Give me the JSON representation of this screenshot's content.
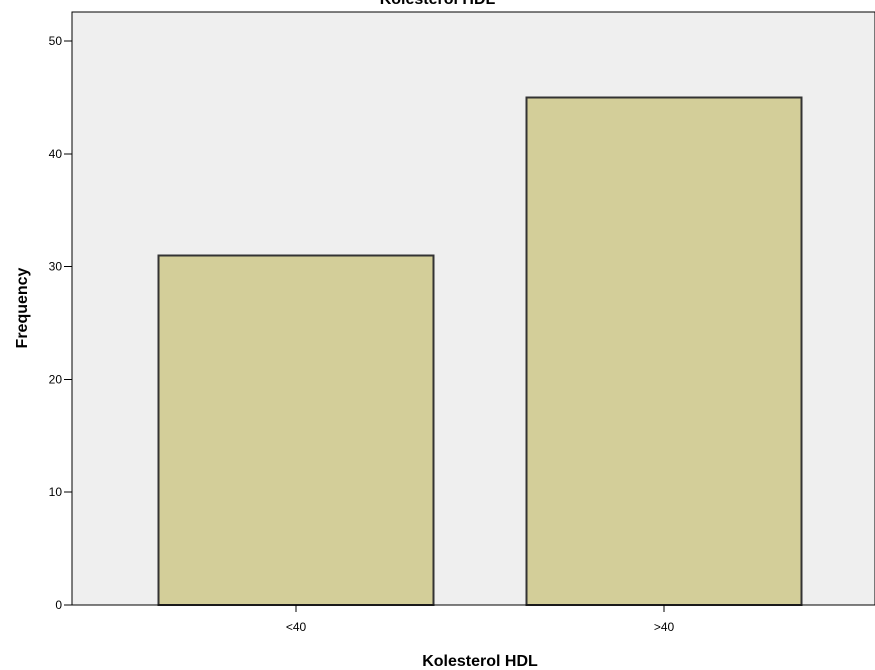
{
  "chart_data": {
    "type": "bar",
    "title": "Kolesterol HDL",
    "xlabel": "Kolesterol HDL",
    "ylabel": "Frequency",
    "categories": [
      "<40",
      ">40"
    ],
    "values": [
      31,
      45
    ],
    "ylim": [
      0,
      52
    ],
    "yticks": [
      0,
      10,
      20,
      30,
      40,
      50
    ],
    "grid": false,
    "legend": "none"
  },
  "colors": {
    "plot_background": "#efefef",
    "bar_fill": "#d3ce99",
    "bar_stroke": "#333333"
  }
}
